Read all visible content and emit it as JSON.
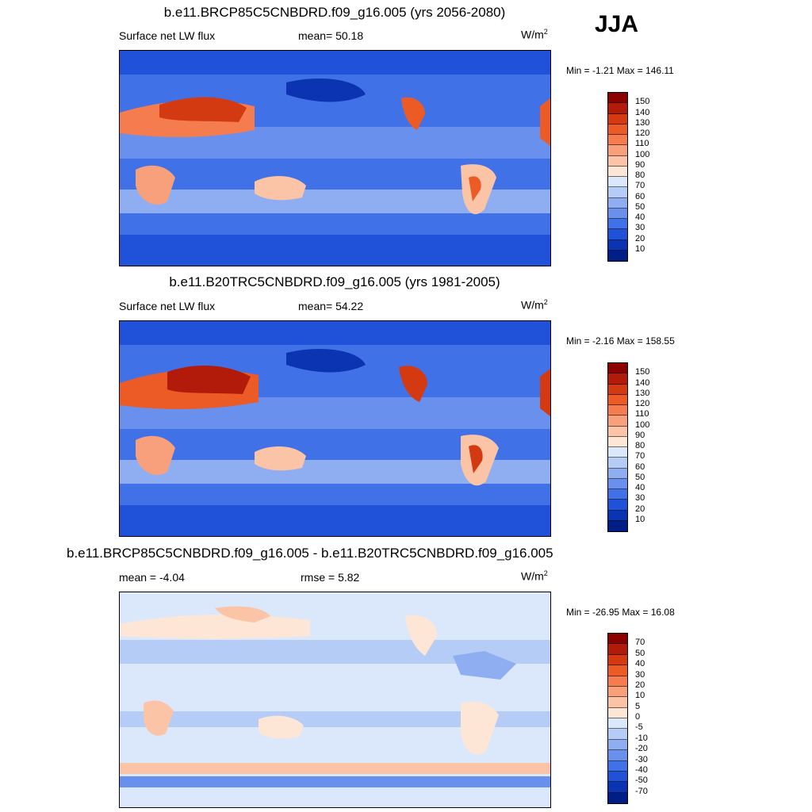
{
  "season": "JJA",
  "panels": [
    {
      "title": "b.e11.BRCP85C5CNBDRD.f09_g16.005 (yrs 2056-2080)",
      "left_label": "Surface net LW flux",
      "center_label": "mean=  50.18",
      "units": "W/m",
      "units_exp": "2",
      "minmax": "Min =  -1.21 Max = 146.11",
      "colorbar_labels": [
        "150",
        "140",
        "130",
        "120",
        "110",
        "100",
        "90",
        "80",
        "70",
        "60",
        "50",
        "40",
        "30",
        "20",
        "10"
      ],
      "colorbar_colors": [
        "#8b0000",
        "#b21a0a",
        "#d33a12",
        "#ec5b25",
        "#f47c4e",
        "#f8a07b",
        "#fbc4a6",
        "#fde6d6",
        "#dbe8fb",
        "#b5ccf6",
        "#8eaef1",
        "#6890ec",
        "#4171e6",
        "#1f51d9",
        "#0b34b3",
        "#001e86"
      ]
    },
    {
      "title": "b.e11.B20TRC5CNBDRD.f09_g16.005 (yrs 1981-2005)",
      "left_label": "Surface net LW flux",
      "center_label": "mean=  54.22",
      "units": "W/m",
      "units_exp": "2",
      "minmax": "Min =  -2.16 Max = 158.55",
      "colorbar_labels": [
        "150",
        "140",
        "130",
        "120",
        "110",
        "100",
        "90",
        "80",
        "70",
        "60",
        "50",
        "40",
        "30",
        "20",
        "10"
      ],
      "colorbar_colors": [
        "#8b0000",
        "#b21a0a",
        "#d33a12",
        "#ec5b25",
        "#f47c4e",
        "#f8a07b",
        "#fbc4a6",
        "#fde6d6",
        "#dbe8fb",
        "#b5ccf6",
        "#8eaef1",
        "#6890ec",
        "#4171e6",
        "#1f51d9",
        "#0b34b3",
        "#001e86"
      ]
    },
    {
      "title": "b.e11.BRCP85C5CNBDRD.f09_g16.005 - b.e11.B20TRC5CNBDRD.f09_g16.005",
      "left_label": "mean =  -4.04",
      "center_label": "rmse =   5.82",
      "units": "W/m",
      "units_exp": "2",
      "minmax": "Min = -26.95 Max =  16.08",
      "colorbar_labels": [
        "70",
        "50",
        "40",
        "30",
        "20",
        "10",
        "5",
        "0",
        "-5",
        "-10",
        "-20",
        "-30",
        "-40",
        "-50",
        "-70"
      ],
      "colorbar_colors": [
        "#8b0000",
        "#b21a0a",
        "#d33a12",
        "#ec5b25",
        "#f47c4e",
        "#f8a07b",
        "#fbc4a6",
        "#fde6d6",
        "#dbe8fb",
        "#b5ccf6",
        "#8eaef1",
        "#6890ec",
        "#4171e6",
        "#1f51d9",
        "#0b34b3",
        "#001e86"
      ]
    }
  ]
}
